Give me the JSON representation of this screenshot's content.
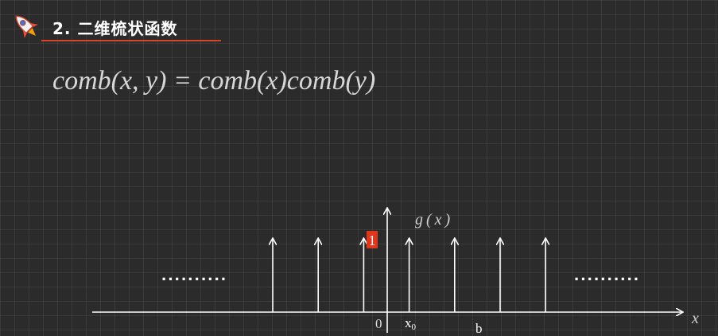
{
  "header": {
    "title": "2. 二维梳状函数",
    "icon": "rocket-icon",
    "accent_color": "#d9442a"
  },
  "formula": {
    "text": "comb(x, y) = comb(x)comb(y)"
  },
  "diagram": {
    "y_axis_label": "g(x)",
    "x_axis_label": "x",
    "origin_label": "0",
    "impulse_height_label": "1",
    "x0_label": "x",
    "x0_subscript": "0",
    "b_label": "b",
    "left_ellipsis": "··········",
    "right_ellipsis": "··········",
    "impulse_count": 7
  }
}
